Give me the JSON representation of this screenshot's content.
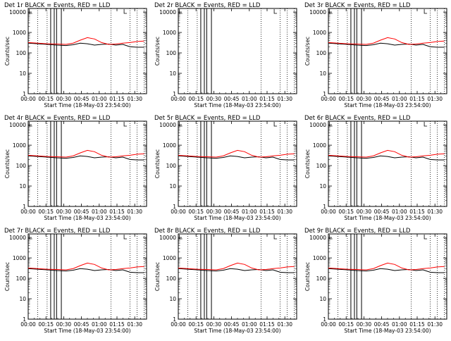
{
  "figure": {
    "common_xlabel": "Start Time (18-May-03 23:54:00)",
    "common_ylabel": "Counts/sec",
    "title_suffix": " BLACK = Events, RED = LLD",
    "x_tick_labels": [
      "00:00",
      "00:15",
      "00:30",
      "00:45",
      "01:00",
      "01:15",
      "01:30"
    ],
    "y_tick_labels": [
      "1",
      "10",
      "100",
      "1000",
      "10000"
    ],
    "colors": {
      "events": "#000000",
      "lld": "#ff0000",
      "axis": "#000000"
    }
  },
  "chart_data": [
    {
      "type": "line",
      "title": "Det 1r BLACK = Events, RED = LLD",
      "detector": "Det 1r",
      "xlabel": "Start Time (18-May-03 23:54:00)",
      "ylabel": "Counts/sec",
      "x_unit": "minutes after 18-May-03 23:54:00",
      "xlim": [
        0,
        100
      ],
      "ylim": [
        1,
        15000
      ],
      "y_scale": "log",
      "x": [
        0,
        8,
        16,
        24,
        32,
        38,
        44,
        50,
        56,
        62,
        68,
        74,
        80,
        86,
        92,
        98
      ],
      "series": [
        {
          "name": "Events",
          "color": "#000000",
          "values": [
            300,
            280,
            260,
            240,
            230,
            250,
            300,
            280,
            240,
            260,
            270,
            240,
            260,
            200,
            190,
            190
          ]
        },
        {
          "name": "LLD",
          "color": "#ff0000",
          "values": [
            320,
            300,
            280,
            270,
            260,
            300,
            420,
            560,
            480,
            320,
            260,
            270,
            300,
            320,
            360,
            380
          ]
        }
      ],
      "gaps": [
        [
          0,
          8
        ],
        [
          8,
          16
        ],
        [
          16,
          20
        ],
        [
          20,
          28
        ],
        [
          29,
          33
        ],
        [
          70,
          80
        ],
        [
          80,
          86
        ],
        [
          86,
          92
        ],
        [
          92,
          98
        ]
      ],
      "intervals": [
        [
          19,
          22
        ],
        [
          24,
          28
        ]
      ]
    },
    {
      "type": "line",
      "title": "Det 2r BLACK = Events, RED = LLD",
      "detector": "Det 2r",
      "xlabel": "Start Time (18-May-03 23:54:00)",
      "ylabel": "Counts/sec",
      "x_unit": "minutes after 18-May-03 23:54:00",
      "xlim": [
        0,
        100
      ],
      "ylim": [
        1,
        15000
      ],
      "y_scale": "log",
      "x": [],
      "series": [
        {
          "name": "Events",
          "color": "#000000",
          "values": []
        },
        {
          "name": "LLD",
          "color": "#ff0000",
          "values": []
        }
      ],
      "gaps": [
        [
          0,
          8
        ],
        [
          8,
          16
        ],
        [
          16,
          20
        ],
        [
          20,
          28
        ],
        [
          29,
          33
        ],
        [
          70,
          80
        ],
        [
          80,
          86
        ],
        [
          86,
          92
        ],
        [
          92,
          98
        ]
      ],
      "intervals": [
        [
          19,
          22
        ],
        [
          24,
          28
        ]
      ]
    },
    {
      "type": "line",
      "title": "Det 3r BLACK = Events, RED = LLD",
      "detector": "Det 3r",
      "xlabel": "Start Time (18-May-03 23:54:00)",
      "ylabel": "Counts/sec",
      "x_unit": "minutes after 18-May-03 23:54:00",
      "xlim": [
        0,
        100
      ],
      "ylim": [
        1,
        15000
      ],
      "y_scale": "log",
      "x": [
        0,
        8,
        16,
        24,
        32,
        38,
        44,
        50,
        56,
        62,
        68,
        74,
        80,
        86,
        92,
        98
      ],
      "series": [
        {
          "name": "Events",
          "color": "#000000",
          "values": [
            300,
            280,
            260,
            240,
            230,
            250,
            300,
            280,
            240,
            260,
            270,
            240,
            260,
            200,
            190,
            190
          ]
        },
        {
          "name": "LLD",
          "color": "#ff0000",
          "values": [
            320,
            300,
            280,
            270,
            260,
            300,
            420,
            560,
            480,
            320,
            260,
            270,
            300,
            320,
            360,
            380
          ]
        }
      ],
      "gaps": [
        [
          0,
          8
        ],
        [
          8,
          16
        ],
        [
          16,
          20
        ],
        [
          20,
          28
        ],
        [
          29,
          33
        ],
        [
          70,
          80
        ],
        [
          80,
          86
        ],
        [
          86,
          92
        ],
        [
          92,
          98
        ]
      ],
      "intervals": [
        [
          19,
          22
        ],
        [
          24,
          28
        ]
      ]
    },
    {
      "type": "line",
      "title": "Det 4r BLACK = Events, RED = LLD",
      "detector": "Det 4r",
      "xlabel": "Start Time (18-May-03 23:54:00)",
      "ylabel": "Counts/sec",
      "x_unit": "minutes after 18-May-03 23:54:00",
      "xlim": [
        0,
        100
      ],
      "ylim": [
        1,
        15000
      ],
      "y_scale": "log",
      "x": [
        0,
        8,
        16,
        24,
        32,
        38,
        44,
        50,
        56,
        62,
        68,
        74,
        80,
        86,
        92,
        98
      ],
      "series": [
        {
          "name": "Events",
          "color": "#000000",
          "values": [
            300,
            280,
            260,
            240,
            230,
            250,
            300,
            280,
            240,
            260,
            270,
            240,
            260,
            200,
            190,
            190
          ]
        },
        {
          "name": "LLD",
          "color": "#ff0000",
          "values": [
            320,
            300,
            280,
            270,
            260,
            300,
            420,
            560,
            480,
            320,
            260,
            270,
            300,
            320,
            360,
            380
          ]
        }
      ],
      "gaps": [
        [
          0,
          8
        ],
        [
          8,
          16
        ],
        [
          16,
          20
        ],
        [
          20,
          28
        ],
        [
          29,
          33
        ],
        [
          70,
          80
        ],
        [
          80,
          86
        ],
        [
          86,
          92
        ],
        [
          92,
          98
        ]
      ],
      "intervals": [
        [
          19,
          22
        ],
        [
          24,
          28
        ]
      ]
    },
    {
      "type": "line",
      "title": "Det 5r BLACK = Events, RED = LLD",
      "detector": "Det 5r",
      "xlabel": "Start Time (18-May-03 23:54:00)",
      "ylabel": "Counts/sec",
      "x_unit": "minutes after 18-May-03 23:54:00",
      "xlim": [
        0,
        100
      ],
      "ylim": [
        1,
        15000
      ],
      "y_scale": "log",
      "x": [
        0,
        8,
        16,
        24,
        32,
        38,
        44,
        50,
        56,
        62,
        68,
        74,
        80,
        86,
        92,
        98
      ],
      "series": [
        {
          "name": "Events",
          "color": "#000000",
          "values": [
            300,
            280,
            260,
            240,
            230,
            250,
            300,
            280,
            240,
            260,
            270,
            240,
            260,
            200,
            190,
            190
          ]
        },
        {
          "name": "LLD",
          "color": "#ff0000",
          "values": [
            320,
            300,
            280,
            270,
            260,
            300,
            420,
            560,
            480,
            320,
            260,
            270,
            300,
            320,
            360,
            380
          ]
        }
      ],
      "gaps": [
        [
          0,
          8
        ],
        [
          8,
          16
        ],
        [
          16,
          20
        ],
        [
          20,
          28
        ],
        [
          29,
          33
        ],
        [
          70,
          80
        ],
        [
          80,
          86
        ],
        [
          86,
          92
        ],
        [
          92,
          98
        ]
      ],
      "intervals": [
        [
          19,
          22
        ],
        [
          24,
          28
        ]
      ]
    },
    {
      "type": "line",
      "title": "Det 6r BLACK = Events, RED = LLD",
      "detector": "Det 6r",
      "xlabel": "Start Time (18-May-03 23:54:00)",
      "ylabel": "Counts/sec",
      "x_unit": "minutes after 18-May-03 23:54:00",
      "xlim": [
        0,
        100
      ],
      "ylim": [
        1,
        15000
      ],
      "y_scale": "log",
      "x": [
        0,
        8,
        16,
        24,
        32,
        38,
        44,
        50,
        56,
        62,
        68,
        74,
        80,
        86,
        92,
        98
      ],
      "series": [
        {
          "name": "Events",
          "color": "#000000",
          "values": [
            300,
            280,
            260,
            240,
            230,
            250,
            300,
            280,
            240,
            260,
            270,
            240,
            260,
            200,
            190,
            190
          ]
        },
        {
          "name": "LLD",
          "color": "#ff0000",
          "values": [
            320,
            300,
            280,
            270,
            260,
            300,
            420,
            560,
            480,
            320,
            260,
            270,
            300,
            320,
            360,
            380
          ]
        }
      ],
      "gaps": [
        [
          0,
          8
        ],
        [
          8,
          16
        ],
        [
          16,
          20
        ],
        [
          20,
          28
        ],
        [
          29,
          33
        ],
        [
          70,
          80
        ],
        [
          80,
          86
        ],
        [
          86,
          92
        ],
        [
          92,
          98
        ]
      ],
      "intervals": [
        [
          19,
          22
        ],
        [
          24,
          28
        ]
      ]
    },
    {
      "type": "line",
      "title": "Det 7r BLACK = Events, RED = LLD",
      "detector": "Det 7r",
      "xlabel": "Start Time (18-May-03 23:54:00)",
      "ylabel": "Counts/sec",
      "x_unit": "minutes after 18-May-03 23:54:00",
      "xlim": [
        0,
        100
      ],
      "ylim": [
        1,
        15000
      ],
      "y_scale": "log",
      "x": [
        0,
        8,
        16,
        24,
        32,
        38,
        44,
        50,
        56,
        62,
        68,
        74,
        80,
        86,
        92,
        98
      ],
      "series": [
        {
          "name": "Events",
          "color": "#000000",
          "values": [
            300,
            280,
            260,
            240,
            230,
            250,
            300,
            280,
            240,
            260,
            270,
            240,
            260,
            200,
            190,
            190
          ]
        },
        {
          "name": "LLD",
          "color": "#ff0000",
          "values": [
            320,
            300,
            280,
            270,
            260,
            300,
            420,
            560,
            480,
            320,
            260,
            270,
            300,
            320,
            360,
            380
          ]
        }
      ],
      "gaps": [
        [
          0,
          8
        ],
        [
          8,
          16
        ],
        [
          16,
          20
        ],
        [
          20,
          28
        ],
        [
          29,
          33
        ],
        [
          70,
          80
        ],
        [
          80,
          86
        ],
        [
          86,
          92
        ],
        [
          92,
          98
        ]
      ],
      "intervals": [
        [
          19,
          22
        ],
        [
          24,
          28
        ]
      ]
    },
    {
      "type": "line",
      "title": "Det 8r BLACK = Events, RED = LLD",
      "detector": "Det 8r",
      "xlabel": "Start Time (18-May-03 23:54:00)",
      "ylabel": "Counts/sec",
      "x_unit": "minutes after 18-May-03 23:54:00",
      "xlim": [
        0,
        100
      ],
      "ylim": [
        1,
        15000
      ],
      "y_scale": "log",
      "x": [
        0,
        8,
        16,
        24,
        32,
        38,
        44,
        50,
        56,
        62,
        68,
        74,
        80,
        86,
        92,
        98
      ],
      "series": [
        {
          "name": "Events",
          "color": "#000000",
          "values": [
            300,
            280,
            260,
            240,
            230,
            250,
            300,
            280,
            240,
            260,
            270,
            240,
            260,
            200,
            190,
            190
          ]
        },
        {
          "name": "LLD",
          "color": "#ff0000",
          "values": [
            320,
            300,
            280,
            270,
            260,
            300,
            420,
            560,
            480,
            320,
            260,
            270,
            300,
            320,
            360,
            380
          ]
        }
      ],
      "gaps": [
        [
          0,
          8
        ],
        [
          8,
          16
        ],
        [
          16,
          20
        ],
        [
          20,
          28
        ],
        [
          29,
          33
        ],
        [
          70,
          80
        ],
        [
          80,
          86
        ],
        [
          86,
          92
        ],
        [
          92,
          98
        ]
      ],
      "intervals": [
        [
          19,
          22
        ],
        [
          24,
          28
        ]
      ]
    },
    {
      "type": "line",
      "title": "Det 9r BLACK = Events, RED = LLD",
      "detector": "Det 9r",
      "xlabel": "Start Time (18-May-03 23:54:00)",
      "ylabel": "Counts/sec",
      "x_unit": "minutes after 18-May-03 23:54:00",
      "xlim": [
        0,
        100
      ],
      "ylim": [
        1,
        15000
      ],
      "y_scale": "log",
      "x": [
        0,
        8,
        16,
        24,
        32,
        38,
        44,
        50,
        56,
        62,
        68,
        74,
        80,
        86,
        92,
        98
      ],
      "series": [
        {
          "name": "Events",
          "color": "#000000",
          "values": [
            300,
            280,
            260,
            240,
            230,
            250,
            300,
            280,
            240,
            260,
            270,
            240,
            260,
            200,
            190,
            190
          ]
        },
        {
          "name": "LLD",
          "color": "#ff0000",
          "values": [
            320,
            300,
            280,
            270,
            260,
            300,
            420,
            560,
            480,
            320,
            260,
            270,
            300,
            320,
            360,
            380
          ]
        }
      ],
      "gaps": [
        [
          0,
          8
        ],
        [
          8,
          16
        ],
        [
          16,
          20
        ],
        [
          20,
          28
        ],
        [
          29,
          33
        ],
        [
          70,
          80
        ],
        [
          80,
          86
        ],
        [
          86,
          92
        ],
        [
          92,
          98
        ]
      ],
      "intervals": [
        [
          19,
          22
        ],
        [
          24,
          28
        ]
      ]
    }
  ]
}
